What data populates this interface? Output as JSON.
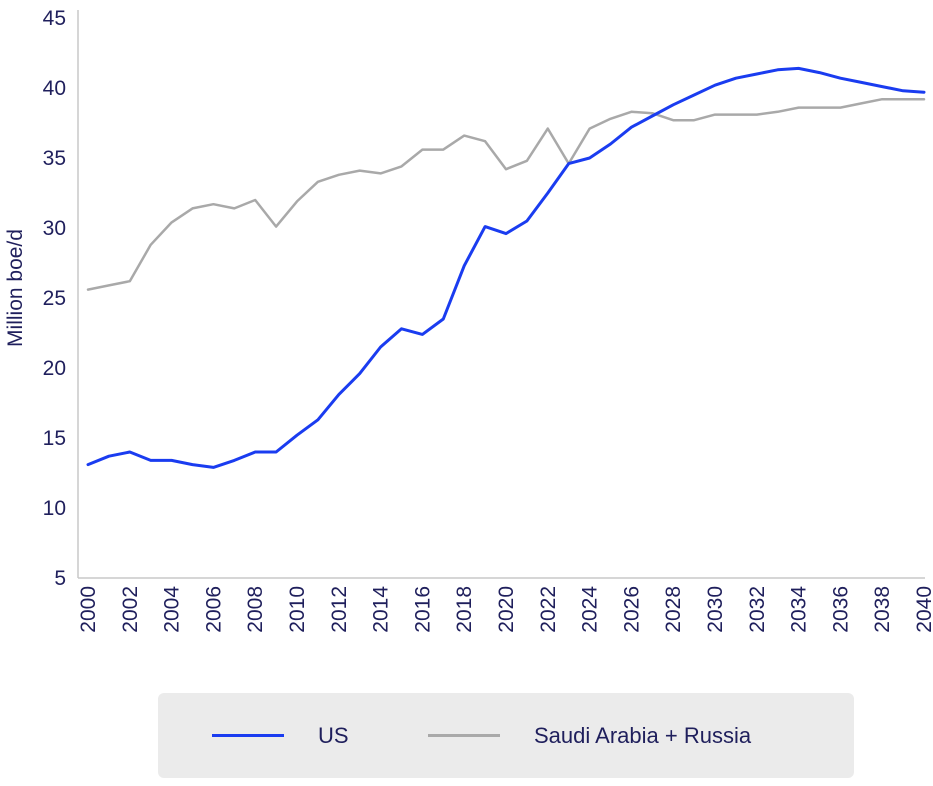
{
  "chart_data": {
    "type": "line",
    "ylabel": "Million boe/d",
    "xlabel": "",
    "ylim": [
      5,
      45
    ],
    "yticks": [
      5,
      10,
      15,
      20,
      25,
      30,
      35,
      40,
      45
    ],
    "xlim": [
      2000,
      2040
    ],
    "xticks": [
      "2000",
      "2002",
      "2004",
      "2006",
      "2008",
      "2010",
      "2012",
      "2014",
      "2016",
      "2018",
      "2020",
      "2022",
      "2024",
      "2026",
      "2028",
      "2030",
      "2032",
      "2034",
      "2036",
      "2038",
      "2040"
    ],
    "grid": false,
    "legend_position": "bottom",
    "x": [
      2000,
      2001,
      2002,
      2003,
      2004,
      2005,
      2006,
      2007,
      2008,
      2009,
      2010,
      2011,
      2012,
      2013,
      2014,
      2015,
      2016,
      2017,
      2018,
      2019,
      2020,
      2021,
      2022,
      2023,
      2024,
      2025,
      2026,
      2027,
      2028,
      2029,
      2030,
      2031,
      2032,
      2033,
      2034,
      2035,
      2036,
      2037,
      2038,
      2039,
      2040
    ],
    "series": [
      {
        "name": "US",
        "color": "#1a3cf0",
        "values": [
          13.1,
          13.7,
          14.0,
          13.4,
          13.4,
          13.1,
          12.9,
          13.4,
          14.0,
          14.0,
          15.2,
          16.3,
          18.1,
          19.6,
          21.5,
          22.8,
          22.4,
          23.5,
          27.3,
          30.1,
          29.6,
          30.5,
          32.5,
          34.6,
          35.0,
          36.0,
          37.2,
          38.0,
          38.8,
          39.5,
          40.2,
          40.7,
          41.0,
          41.3,
          41.4,
          41.1,
          40.7,
          40.4,
          40.1,
          39.8,
          39.7
        ]
      },
      {
        "name": "Saudi Arabia + Russia",
        "color": "#a9a9a9",
        "values": [
          25.6,
          25.9,
          26.2,
          28.8,
          30.4,
          31.4,
          31.7,
          31.4,
          32.0,
          30.1,
          31.9,
          33.3,
          33.8,
          34.1,
          33.9,
          34.4,
          35.6,
          35.6,
          36.6,
          36.2,
          34.2,
          34.8,
          37.1,
          34.6,
          37.1,
          37.8,
          38.3,
          38.2,
          37.7,
          37.7,
          38.1,
          38.1,
          38.1,
          38.3,
          38.6,
          38.6,
          38.6,
          38.9,
          39.2,
          39.2,
          39.2
        ]
      }
    ]
  }
}
